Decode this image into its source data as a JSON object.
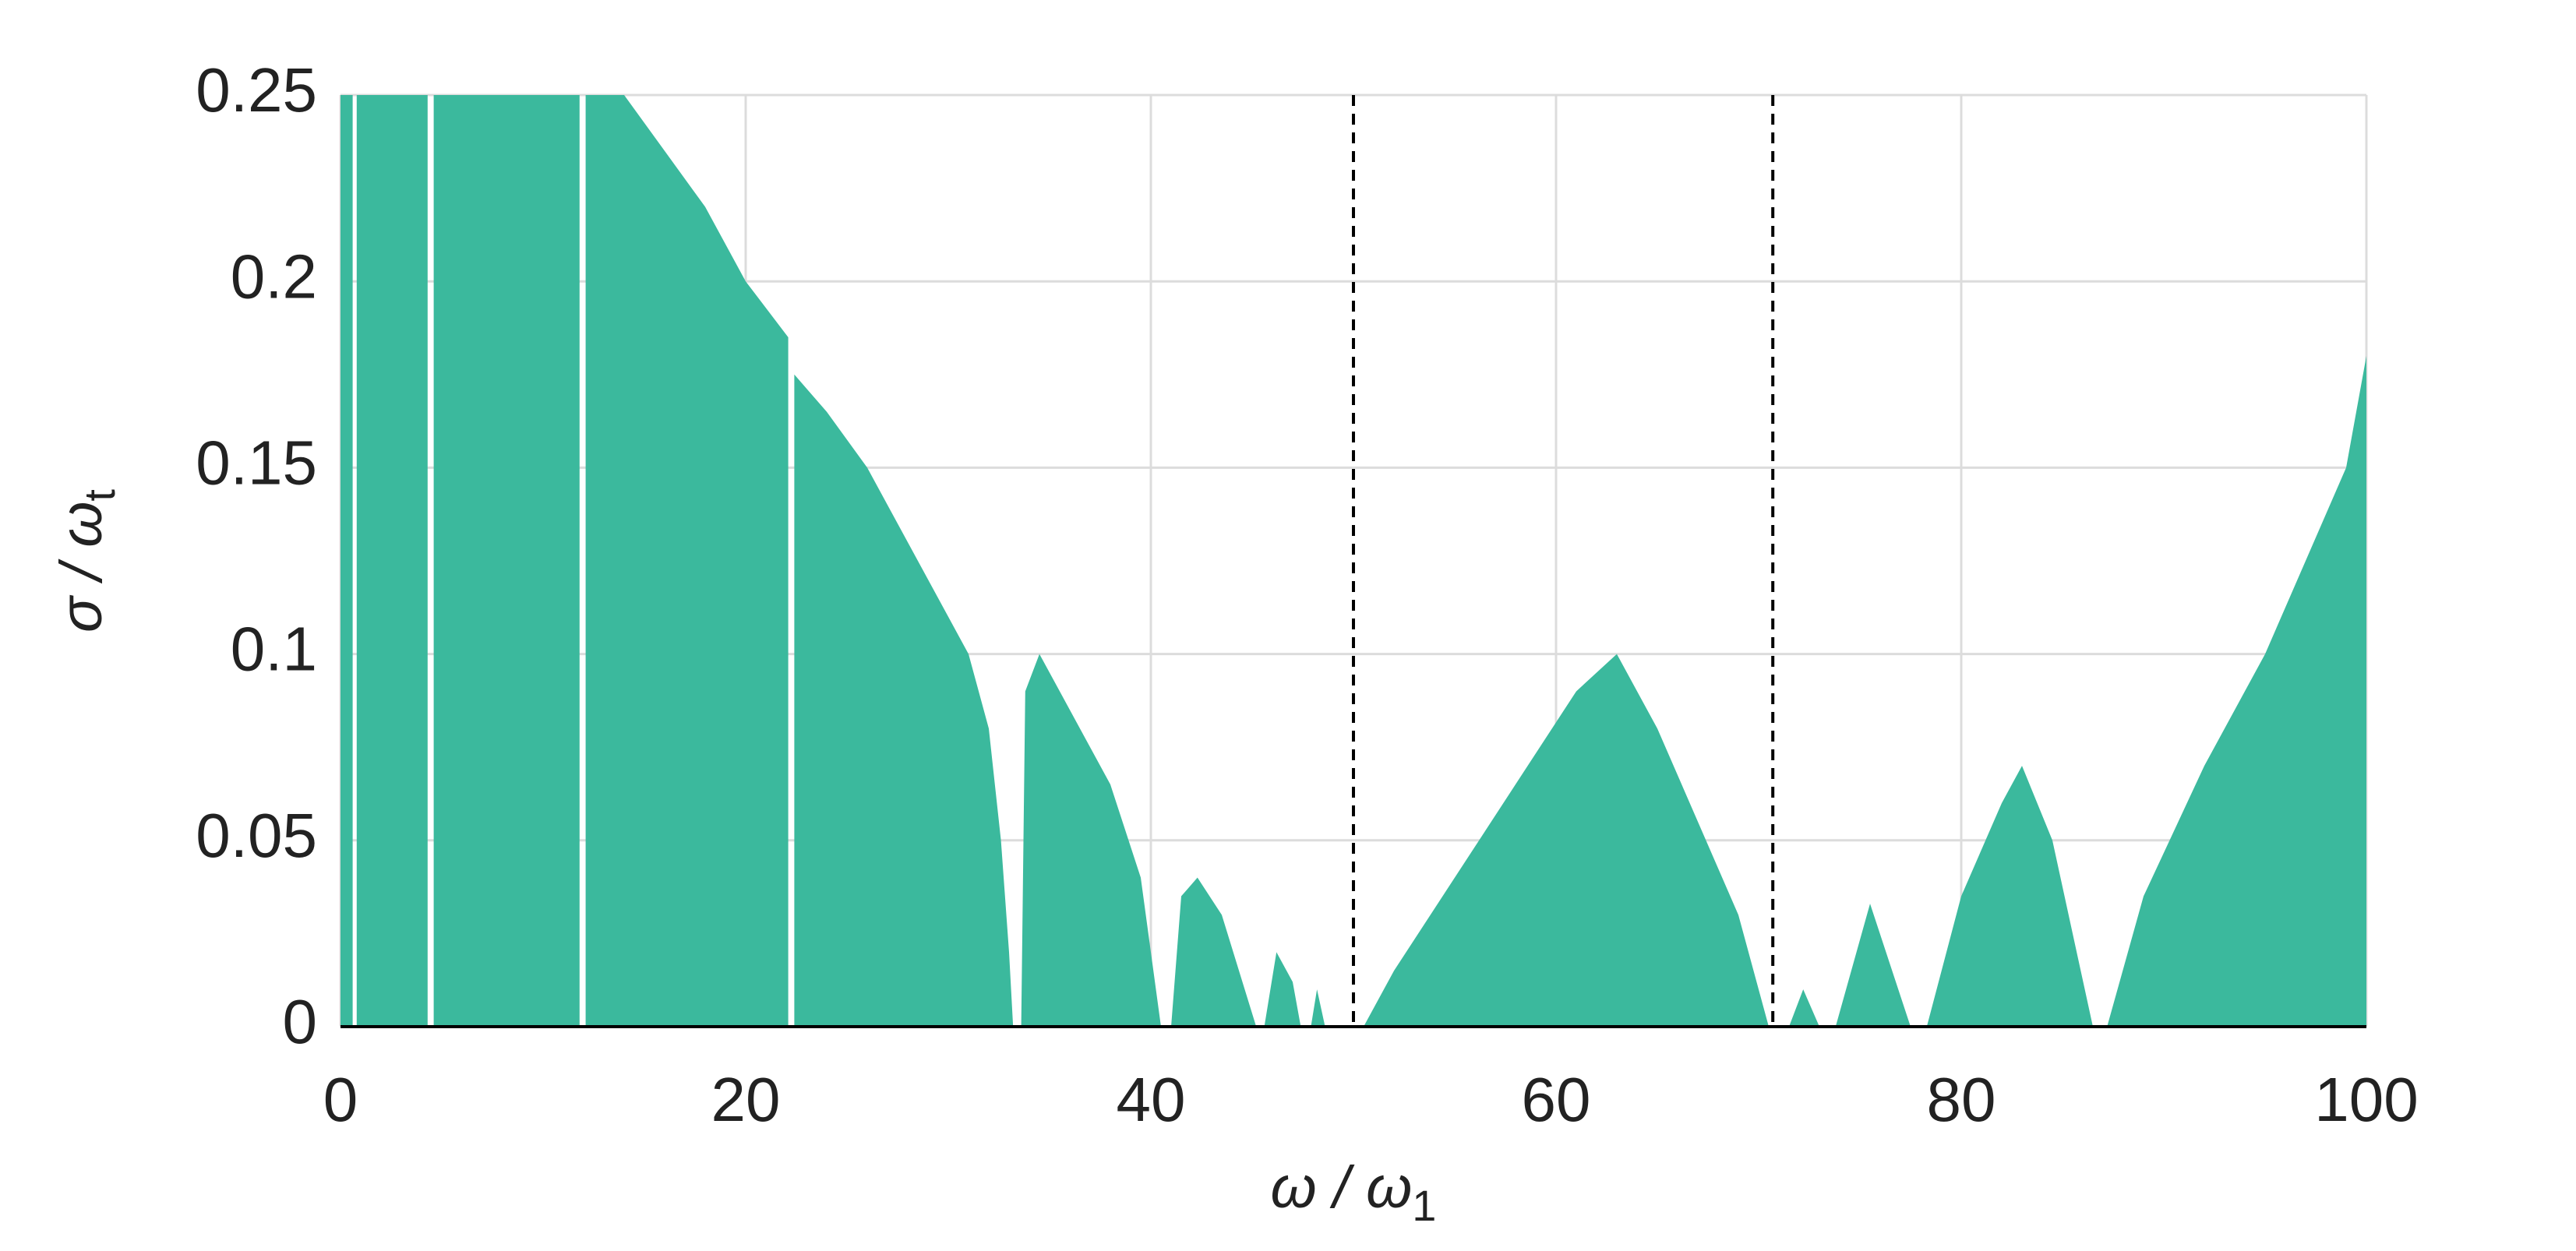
{
  "chart_data": {
    "type": "area",
    "xlabel": "ω / ω",
    "xlabel_sub": "1",
    "ylabel": "σ / ω",
    "ylabel_sub": "t",
    "color": "#3bb99d",
    "x": [
      0,
      0.6,
      0.7,
      0.8,
      4.3,
      4.4,
      4.6,
      11.8,
      11.9,
      12.1,
      14,
      16,
      18,
      20,
      22.1,
      22.2,
      22.4,
      24,
      26,
      28,
      30,
      31,
      32,
      32.6,
      33,
      33.2,
      33.6,
      33.8,
      34.5,
      36,
      38,
      39.5,
      40.5,
      41,
      41.5,
      42.3,
      43.5,
      45.2,
      45.6,
      46.2,
      47,
      47.4,
      47.9,
      48.2,
      48.6,
      50.5,
      52,
      55,
      58,
      61,
      63,
      65,
      67,
      69,
      70.5,
      71.5,
      72.2,
      73,
      73.8,
      75.5,
      77.5,
      78.3,
      80,
      82,
      83,
      84.5,
      86.5,
      87.2,
      89,
      92,
      95,
      97,
      99,
      100,
      100
    ],
    "values": [
      0.25,
      0.25,
      null,
      0.25,
      0.25,
      null,
      0.25,
      0.25,
      null,
      0.25,
      0.25,
      0.235,
      0.22,
      0.2,
      0.185,
      null,
      0.175,
      0.165,
      0.15,
      0.13,
      0.11,
      0.1,
      0.08,
      0.05,
      0.02,
      0,
      0,
      0.09,
      0.1,
      0.085,
      0.065,
      0.04,
      0,
      0,
      0.035,
      0.04,
      0.03,
      0,
      0,
      0.02,
      0.012,
      0,
      0,
      0.01,
      0,
      0,
      0.015,
      0.04,
      0.065,
      0.09,
      0.1,
      0.08,
      0.055,
      0.03,
      0,
      0,
      0.01,
      0,
      0,
      0.033,
      0,
      0,
      0.035,
      0.06,
      0.07,
      0.05,
      0,
      0,
      0.035,
      0.07,
      0.1,
      0.125,
      0.15,
      0.18,
      0
    ],
    "vlines": [
      50,
      70.7
    ],
    "xlim": [
      0,
      100
    ],
    "xticks": [
      0,
      20,
      40,
      60,
      80,
      100
    ],
    "ylim": [
      0,
      0.25
    ],
    "yticks": [
      0,
      0.05,
      0.1,
      0.15,
      0.2,
      0.25
    ],
    "grid": true
  }
}
